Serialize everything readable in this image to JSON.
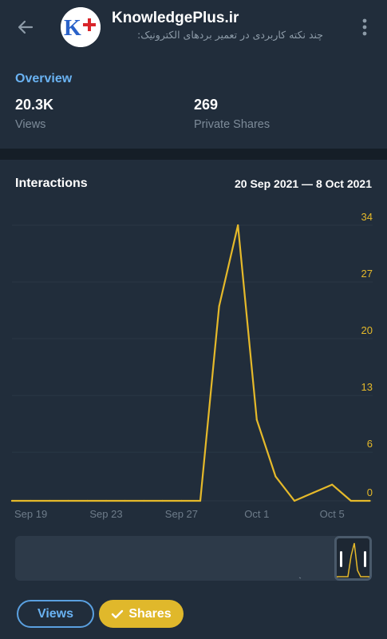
{
  "header": {
    "back_icon": "arrow-left-icon",
    "channel_name": "KnowledgePlus.ir",
    "channel_subtitle": "چند نکته کاربردی در تعمیر بردهای الکترونیک:",
    "avatar_text": "K+",
    "menu_icon": "more-vertical-icon"
  },
  "overview": {
    "title": "Overview",
    "views_value": "20.3K",
    "views_label": "Views",
    "shares_value": "269",
    "shares_label": "Private Shares"
  },
  "interactions": {
    "title": "Interactions",
    "date_range": "20 Sep 2021 — 8 Oct 2021"
  },
  "chart_data": {
    "type": "line",
    "x_ticks": [
      "Sep 19",
      "Sep 23",
      "Sep 27",
      "Oct 1",
      "Oct 5"
    ],
    "y_ticks": [
      0,
      6,
      13,
      20,
      27,
      34
    ],
    "ylim": [
      0,
      34
    ],
    "axis_color": "#e5b92a",
    "series": [
      {
        "color": "#e5b92a",
        "points": [
          {
            "x": "2021-09-18",
            "y": 0
          },
          {
            "x": "2021-09-19",
            "y": 0
          },
          {
            "x": "2021-09-20",
            "y": 0
          },
          {
            "x": "2021-09-21",
            "y": 0
          },
          {
            "x": "2021-09-22",
            "y": 0
          },
          {
            "x": "2021-09-23",
            "y": 0
          },
          {
            "x": "2021-09-24",
            "y": 0
          },
          {
            "x": "2021-09-25",
            "y": 0
          },
          {
            "x": "2021-09-26",
            "y": 0
          },
          {
            "x": "2021-09-27",
            "y": 0
          },
          {
            "x": "2021-09-28",
            "y": 0
          },
          {
            "x": "2021-09-29",
            "y": 24
          },
          {
            "x": "2021-09-30",
            "y": 34
          },
          {
            "x": "2021-10-01",
            "y": 10
          },
          {
            "x": "2021-10-02",
            "y": 3
          },
          {
            "x": "2021-10-03",
            "y": 0
          },
          {
            "x": "2021-10-04",
            "y": 1
          },
          {
            "x": "2021-10-05",
            "y": 2
          },
          {
            "x": "2021-10-06",
            "y": 0
          },
          {
            "x": "2021-10-07",
            "y": 0
          }
        ]
      }
    ]
  },
  "filters": {
    "views_label": "Views",
    "shares_label": "Shares",
    "check_icon": "check-icon"
  }
}
